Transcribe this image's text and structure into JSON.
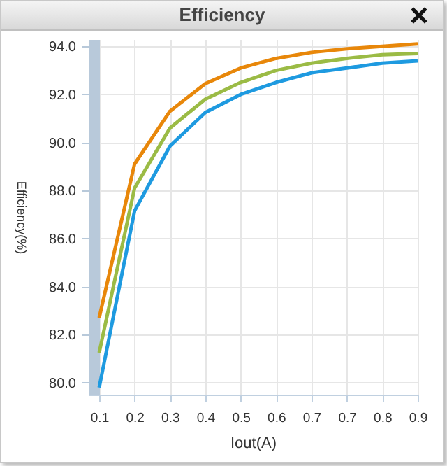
{
  "chart_data": {
    "type": "line",
    "title": "Efficiency",
    "xlabel": "Iout(A)",
    "ylabel": "Efficiency(%)",
    "categories": [
      "0.1",
      "0.2",
      "0.3",
      "0.4",
      "0.5",
      "0.6",
      "0.7",
      "0.7",
      "0.8",
      "0.9"
    ],
    "series": [
      {
        "color": "#e8870a",
        "values": [
          82.7,
          89.1,
          91.3,
          92.45,
          93.1,
          93.5,
          93.75,
          93.9,
          94.0,
          94.1
        ]
      },
      {
        "color": "#9bbb45",
        "values": [
          81.25,
          88.1,
          90.6,
          91.8,
          92.5,
          93.0,
          93.3,
          93.5,
          93.65,
          93.7
        ]
      },
      {
        "color": "#1e9ae0",
        "values": [
          79.8,
          87.15,
          89.85,
          91.25,
          92.0,
          92.5,
          92.9,
          93.1,
          93.3,
          93.4
        ]
      }
    ],
    "ylim": [
      79.5,
      94.3
    ],
    "yticks": [
      {
        "value": 80,
        "label": "80.0"
      },
      {
        "value": 82,
        "label": "82.0"
      },
      {
        "value": 84,
        "label": "84.0"
      },
      {
        "value": 86,
        "label": "86.0"
      },
      {
        "value": 88,
        "label": "88.0"
      },
      {
        "value": 90,
        "label": "90.0"
      },
      {
        "value": 92,
        "label": "92.0"
      },
      {
        "value": 94,
        "label": "94.0"
      }
    ],
    "grid": true
  }
}
